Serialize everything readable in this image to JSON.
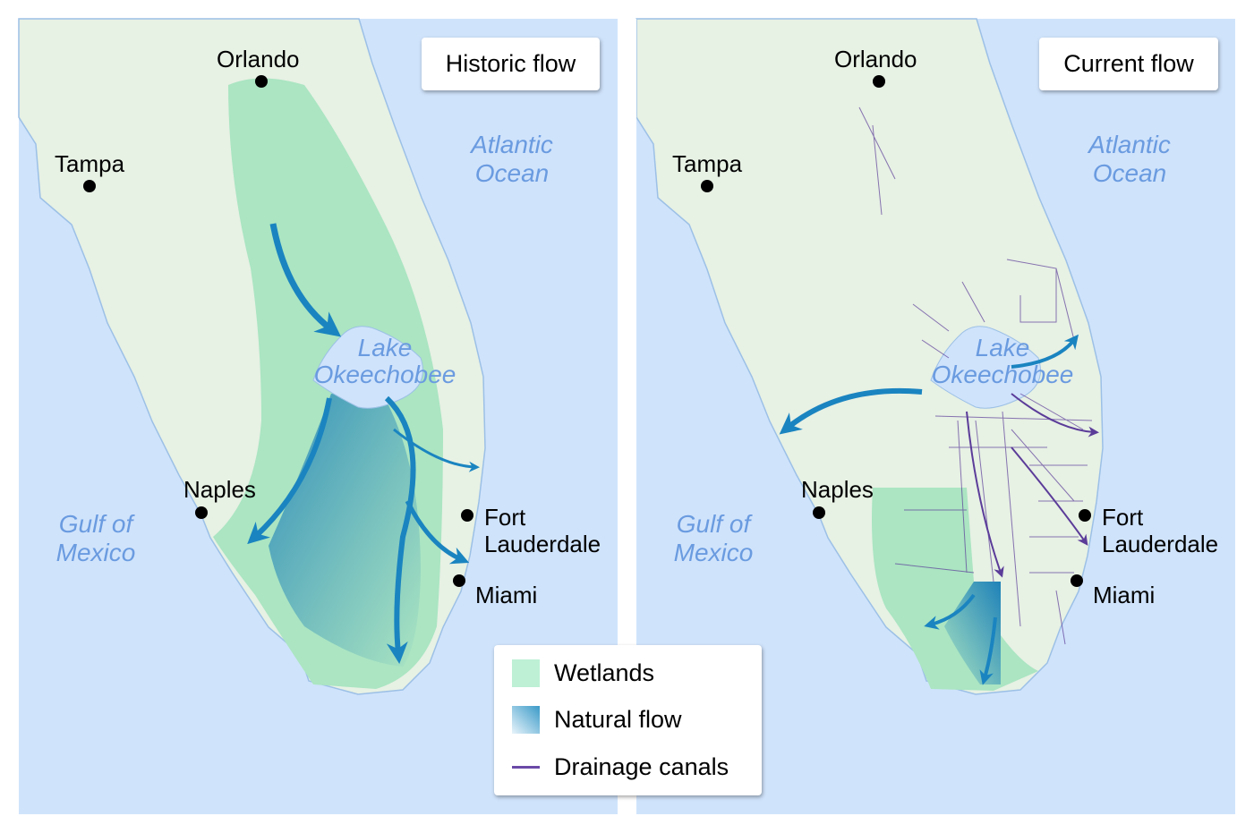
{
  "panels": [
    {
      "title": "Historic flow",
      "cities": [
        "Orlando",
        "Tampa",
        "Naples",
        "Fort",
        "Lauderdale",
        "Miami"
      ],
      "lake": [
        "Lake",
        "Okeechobee"
      ],
      "atlantic": [
        "Atlantic",
        "Ocean"
      ],
      "gulf": [
        "Gulf of",
        "Mexico"
      ]
    },
    {
      "title": "Current flow",
      "cities": [
        "Orlando",
        "Tampa",
        "Naples",
        "Fort",
        "Lauderdale",
        "Miami"
      ],
      "lake": [
        "Lake",
        "Okeechobee"
      ],
      "atlantic": [
        "Atlantic",
        "Ocean"
      ],
      "gulf": [
        "Gulf of",
        "Mexico"
      ]
    }
  ],
  "legend": {
    "items": [
      {
        "label": "Wetlands",
        "color": "#b8eed3"
      },
      {
        "label": "Natural flow",
        "color": "#3a9ac8"
      },
      {
        "label": "Drainage canals",
        "color": "#6a4aa8"
      }
    ]
  },
  "colors": {
    "ocean": "#cfe3fb",
    "land": "#e7f1e4",
    "wetland": "#abe5c2",
    "arrow": "#1a84c0",
    "canal": "#5b3c99"
  }
}
